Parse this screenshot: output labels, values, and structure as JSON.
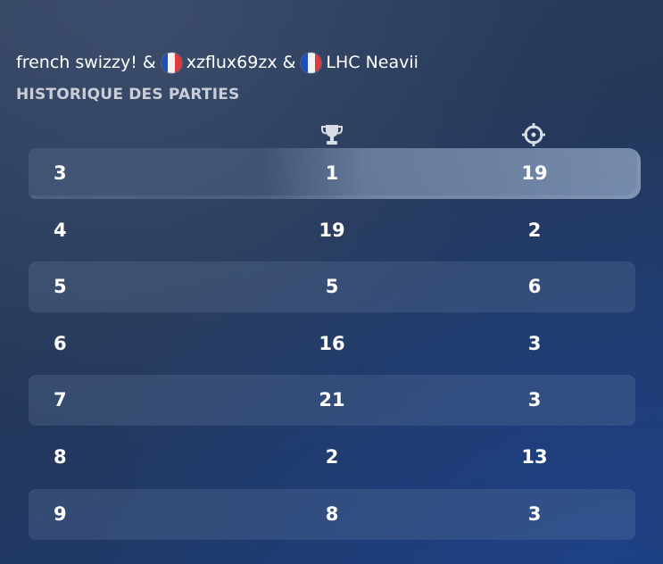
{
  "header": {
    "players": [
      {
        "name": "french swizzy!",
        "flag": ""
      },
      {
        "name": "xzflux69zx",
        "flag": "france-flag"
      },
      {
        "name": "LHC Neavii",
        "flag": "france-flag"
      }
    ],
    "separator": "&"
  },
  "section_title": "HISTORIQUE DES PARTIES",
  "columns": {
    "placement_icon": "trophy-icon",
    "eliminations_icon": "crosshair-icon"
  },
  "matches": [
    {
      "match": "3",
      "placement": "1",
      "eliminations": "19",
      "highlighted": true
    },
    {
      "match": "4",
      "placement": "19",
      "eliminations": "2"
    },
    {
      "match": "5",
      "placement": "5",
      "eliminations": "6"
    },
    {
      "match": "6",
      "placement": "16",
      "eliminations": "3"
    },
    {
      "match": "7",
      "placement": "21",
      "eliminations": "3"
    },
    {
      "match": "8",
      "placement": "2",
      "eliminations": "13"
    },
    {
      "match": "9",
      "placement": "8",
      "eliminations": "3"
    }
  ],
  "colors": {
    "flag_blue": "#1f4fbf",
    "flag_white": "#f2f2f2",
    "flag_red": "#e03a3a",
    "title_gray": "#c9ced8"
  }
}
